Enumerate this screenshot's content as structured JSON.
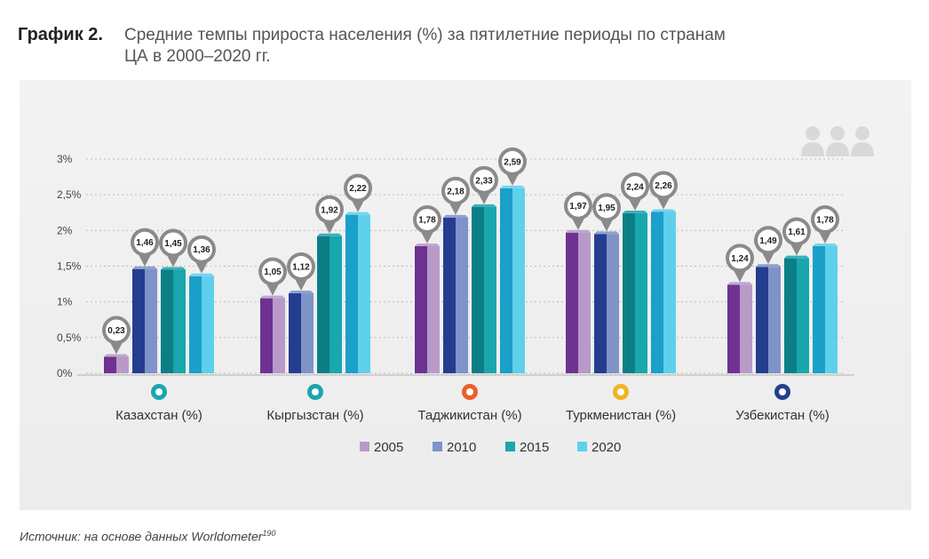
{
  "header": {
    "figure_label": "График 2.",
    "title": "Средние темпы прироста населения (%) за пятилетние периоды по странам ЦА в 2000–2020 гг."
  },
  "source": {
    "text": "Источник: на основе данных Worldometer",
    "footnote": "190"
  },
  "decoration": {
    "icon": "people-group-icon"
  },
  "chart_data": {
    "type": "bar",
    "categories": [
      "Казахстан (%)",
      "Кыргызстан (%)",
      "Таджикистан (%)",
      "Туркменистан (%)",
      "Узбекистан (%)"
    ],
    "category_marker_colors": [
      "#1aa6ad",
      "#1aa6ad",
      "#e8602c",
      "#f0b323",
      "#253f8e"
    ],
    "series": [
      {
        "name": "2005",
        "values": [
          0.23,
          1.05,
          1.78,
          1.97,
          1.24
        ],
        "color": "#b89ac9",
        "label_values": [
          "0,23",
          "1,05",
          "1,78",
          "1,97",
          "1,24"
        ]
      },
      {
        "name": "2010",
        "values": [
          1.46,
          1.12,
          2.18,
          1.95,
          1.49
        ],
        "color": "#7f93c9",
        "label_values": [
          "1,46",
          "1,12",
          "2,18",
          "1,95",
          "1,49"
        ]
      },
      {
        "name": "2015",
        "values": [
          1.45,
          1.92,
          2.33,
          2.24,
          1.61
        ],
        "color": "#1aa6ad",
        "label_values": [
          "1,45",
          "1,92",
          "2,33",
          "2,24",
          "1,61"
        ]
      },
      {
        "name": "2020",
        "values": [
          1.36,
          2.22,
          2.59,
          2.26,
          1.78
        ],
        "color": "#5fd0ec",
        "label_values": [
          "1,36",
          "2,22",
          "2,59",
          "2,26",
          "1,78"
        ]
      }
    ],
    "series_shade_colors": [
      "#6e3291",
      "#243d8f",
      "#0c7f86",
      "#1aa0c9"
    ],
    "y_ticks": [
      0,
      0.5,
      1,
      1.5,
      2,
      2.5,
      3
    ],
    "y_tick_labels": [
      "0%",
      "0,5%",
      "1%",
      "1,5%",
      "2%",
      "2,5%",
      "3%"
    ],
    "ylim": [
      0,
      3
    ],
    "grid": true,
    "legend_position": "bottom"
  }
}
